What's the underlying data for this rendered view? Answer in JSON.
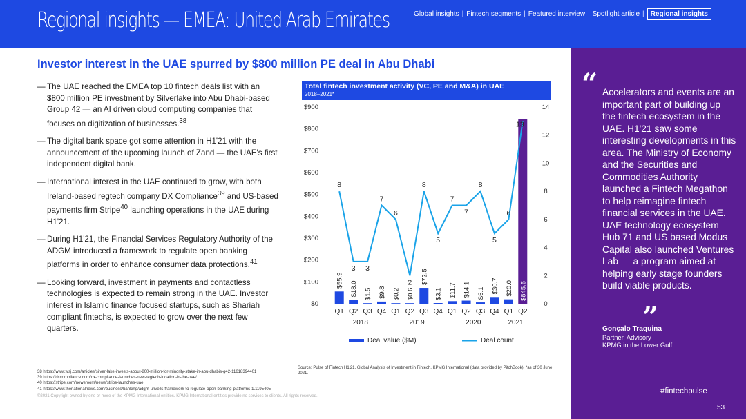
{
  "header": {
    "title": "Regional insights — EMEA: United Arab Emirates",
    "nav": [
      {
        "label": "Global insights",
        "active": false
      },
      {
        "label": "Fintech segments",
        "active": false
      },
      {
        "label": "Featured interview",
        "active": false
      },
      {
        "label": "Spotlight article",
        "active": false
      },
      {
        "label": "Regional insights",
        "active": true
      }
    ],
    "nav_separator": "|"
  },
  "subtitle": "Investor interest in the UAE spurred by $800 million PE deal in Abu Dhabi",
  "bullets": [
    {
      "dash": "—",
      "text": "The UAE reached the EMEA top 10 fintech deals list with an $800 million PE investment by Silverlake into Abu Dhabi-based Group 42 — an AI driven cloud computing companies that focuses on digitization of businesses.",
      "sup": "38",
      "tail": ""
    },
    {
      "dash": "—",
      "text": "The digital bank space got some attention in H1'21 with the announcement of the upcoming launch of Zand — the UAE's first independent digital bank.",
      "sup": "",
      "tail": ""
    },
    {
      "dash": "—",
      "text": "International interest in the UAE continued to grow, with both Ireland-based regtech company DX Compliance",
      "sup": "39",
      "tail": " and US-based payments firm Stripe",
      "sup2": "40",
      "tail2": " launching operations in the UAE during H1'21."
    },
    {
      "dash": "—",
      "text": "During H1'21, the Financial Services Regulatory Authority of the ADGM introduced a framework to regulate open banking platforms in order to enhance consumer data protections.",
      "sup": "41",
      "tail": ""
    },
    {
      "dash": "—",
      "text": "Looking forward, investment in payments and contactless technologies is expected to remain strong in the UAE. Investor interest in Islamic finance focused startups, such as Shariah compliant fintechs, is expected to grow over the next few quarters.",
      "sup": "",
      "tail": ""
    }
  ],
  "chart": {
    "title": "Total fintech investment activity (VC, PE and M&A) in UAE",
    "subtitle": "2018–2021*"
  },
  "chart_data": {
    "type": "bar",
    "title": "Total fintech investment activity (VC, PE and M&A) in UAE",
    "subtitle": "2018–2021*",
    "categories": [
      "Q1",
      "Q2",
      "Q3",
      "Q4",
      "Q1",
      "Q2",
      "Q3",
      "Q4",
      "Q1",
      "Q2",
      "Q3",
      "Q4",
      "Q1",
      "Q2"
    ],
    "years": [
      {
        "label": "2018",
        "from": 0,
        "to": 3
      },
      {
        "label": "2019",
        "from": 4,
        "to": 7
      },
      {
        "label": "2020",
        "from": 8,
        "to": 11
      },
      {
        "label": "2021",
        "from": 12,
        "to": 13
      }
    ],
    "series": [
      {
        "name": "Deal value ($M)",
        "kind": "bar",
        "axis": "left",
        "values": [
          55.9,
          18.0,
          1.5,
          9.8,
          0.2,
          0.6,
          72.5,
          3.1,
          11.7,
          14.1,
          6.1,
          30.7,
          20.0,
          845.5
        ],
        "labels": [
          "$55.9",
          "$18.0",
          "$1.5",
          "$9.8",
          "$0.2",
          "$0.6",
          "$72.5",
          "$3.1",
          "$11.7",
          "$14.1",
          "$6.1",
          "$30.7",
          "$20.0",
          "$845.5"
        ],
        "colors": [
          "#1e49e2",
          "#1e49e2",
          "#1e49e2",
          "#1e49e2",
          "#1e49e2",
          "#1e49e2",
          "#1e49e2",
          "#1e49e2",
          "#1e49e2",
          "#1e49e2",
          "#1e49e2",
          "#1e49e2",
          "#1e49e2",
          "#5a1e94"
        ]
      },
      {
        "name": "Deal count",
        "kind": "line",
        "axis": "right",
        "values": [
          8,
          3,
          3,
          7,
          6,
          2,
          8,
          5,
          7,
          7,
          8,
          5,
          6,
          13
        ],
        "color": "#1aa3e8"
      }
    ],
    "y_left": {
      "min": 0,
      "max": 900,
      "ticks": [
        0,
        100,
        200,
        300,
        400,
        500,
        600,
        700,
        800,
        900
      ],
      "tick_labels": [
        "$0",
        "$100",
        "$200",
        "$300",
        "$400",
        "$500",
        "$600",
        "$700",
        "$800",
        "$900"
      ]
    },
    "y_right": {
      "min": 0,
      "max": 14,
      "ticks": [
        0,
        2,
        4,
        6,
        8,
        10,
        12,
        14
      ],
      "tick_labels": [
        "0",
        "2",
        "4",
        "6",
        "8",
        "10",
        "12",
        "14"
      ]
    },
    "legend": [
      {
        "label": "Deal value ($M)",
        "color": "#1e49e2",
        "shape": "bar"
      },
      {
        "label": "Deal count",
        "color": "#1aa3e8",
        "shape": "line"
      }
    ],
    "legend_position": "bottom",
    "grid": false
  },
  "quote": {
    "open_mark": "“",
    "text": "Accelerators and events are an important part of building up the fintech ecosystem in the UAE. H1'21 saw some interesting developments in this area. The Ministry of Economy and the Securities and Commodities Authority launched a Fintech Megathon to help reimagine fintech financial services in the UAE. UAE technology ecosystem Hub 71 and US based Modus Capital also launched Ventures Lab — a program aimed at helping early stage founders build viable products.",
    "close_mark": "”",
    "author": "Gonçalo Traquina",
    "role": "Partner, Advisory",
    "org": "KPMG in the Lower Gulf"
  },
  "footnotes": [
    "38 https://www.wsj.com/articles/silver-lake-invests-about-800-million-for-minority-stake-in-abu-dhabis-g42-11618394401",
    "39 https://dxcompliance.com/dx-compliance-launches-new-regtech-location-in-the-uae/",
    "40 https://stripe.com/newsroom/news/stripe-launches-uae",
    "41 https://www.thenationalnews.com/business/banking/adgm-unveils-framework-to-regulate-open-banking-platforms-1.1195405"
  ],
  "source": "Source: Pulse of Fintech H1'21, Global Analysis of Investment in Fintech, KPMG International (data provided by PitchBook), *as of 30 June 2021.",
  "copyright": "©2021 Copyright owned by one or more of the KPMG International entities. KPMG International entities provide no services to clients. All rights reserved.",
  "hashtag": "#fintechpulse",
  "page_number": "53",
  "colors": {
    "brand_blue": "#1e49e2",
    "purple": "#5a1e94",
    "line_blue": "#1aa3e8"
  }
}
